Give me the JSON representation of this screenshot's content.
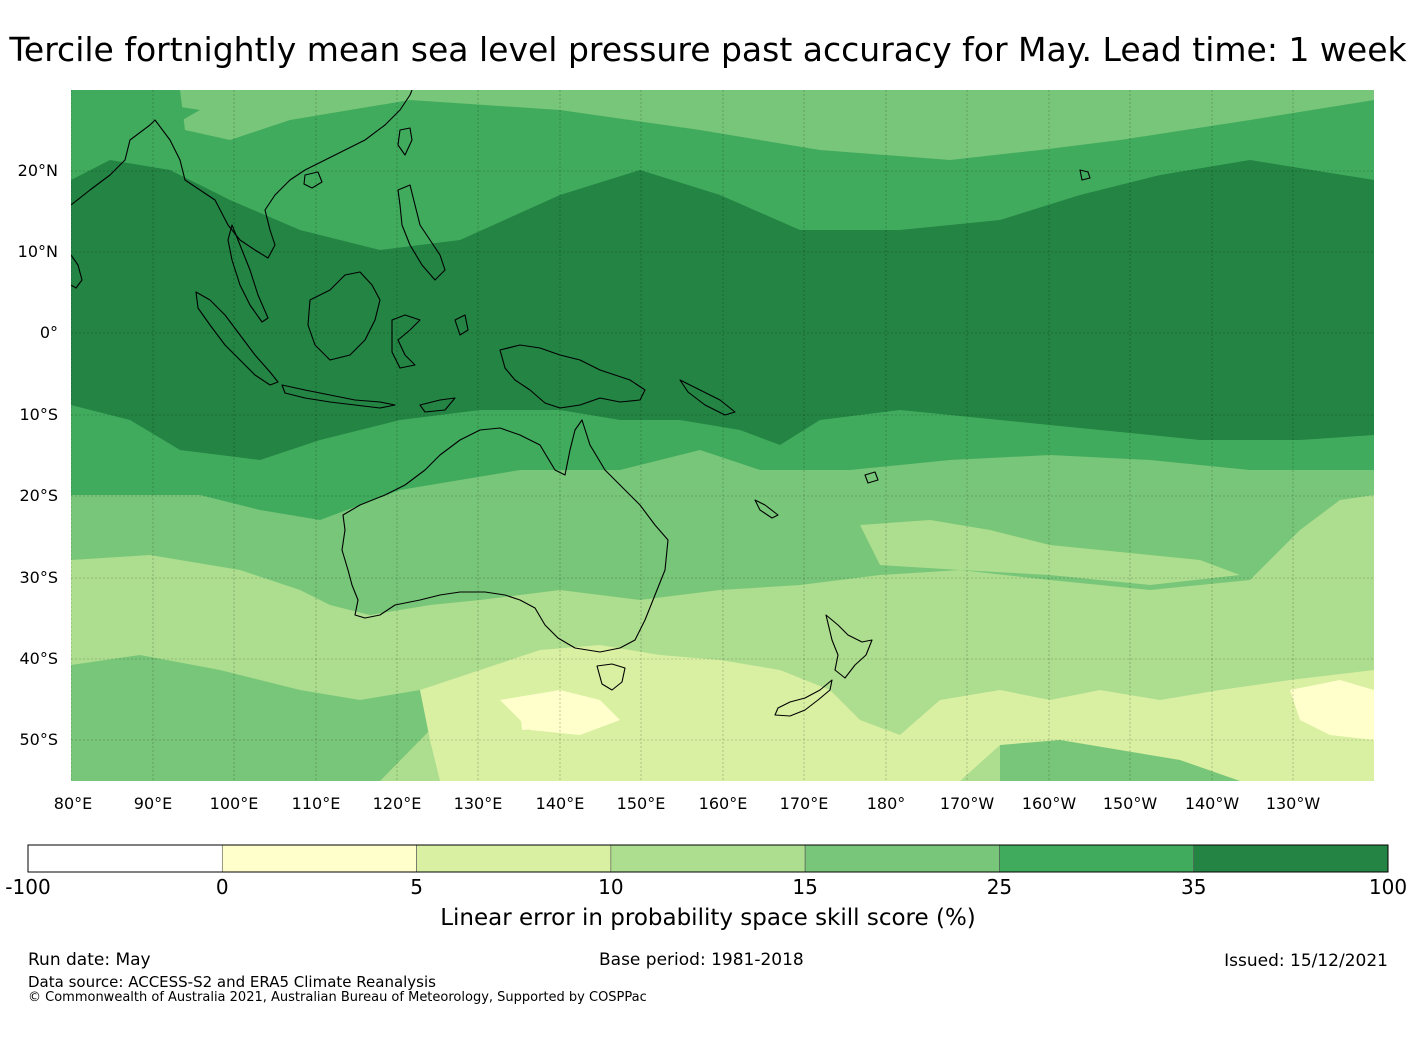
{
  "title": "Tercile fortnightly mean sea level pressure past accuracy for May. Lead time: 1 week",
  "map": {
    "lat_labels": [
      "20°N",
      "10°N",
      "0°",
      "10°S",
      "20°S",
      "30°S",
      "40°S",
      "50°S"
    ],
    "lon_labels": [
      "80°E",
      "90°E",
      "100°E",
      "110°E",
      "120°E",
      "130°E",
      "140°E",
      "150°E",
      "160°E",
      "170°E",
      "180°",
      "170°W",
      "160°W",
      "150°W",
      "140°W",
      "130°W"
    ],
    "extent": {
      "lon_min": 80,
      "lon_max": 240,
      "lat_min": -55,
      "lat_max": 30
    },
    "gridlines": true,
    "coastlines": true,
    "regions_description_by_category": {
      "35 to 100": "equatorial band ~13°S–10°N across the domain, Maritime Continent, central/eastern tropical Pacific",
      "25 to 35": "subtropical belts 10–20°N and 10–20°S, western North Pacific",
      "15 to 25": "northern edge 20–30°N, Australia, subtropical South Pacific",
      "10 to 15": "mid-latitudes 30–45°S, Indian Ocean south of 25°S",
      "5 to 10": "Southern Ocean south of Australia 40–55°S, east of New Zealand",
      "0 to 5": "isolated patches south of Australia and far south-east Pacific"
    }
  },
  "colorbar": {
    "bins": [
      {
        "from": -100,
        "to": 0,
        "color": "#ffffff"
      },
      {
        "from": 0,
        "to": 5,
        "color": "#ffffcc"
      },
      {
        "from": 5,
        "to": 10,
        "color": "#d9f0a3"
      },
      {
        "from": 10,
        "to": 15,
        "color": "#addd8e"
      },
      {
        "from": 15,
        "to": 25,
        "color": "#78c679"
      },
      {
        "from": 25,
        "to": 35,
        "color": "#41ab5d"
      },
      {
        "from": 35,
        "to": 100,
        "color": "#238443"
      }
    ],
    "ticks": [
      "-100",
      "0",
      "5",
      "10",
      "15",
      "25",
      "35",
      "100"
    ],
    "label": "Linear error in probability space skill score (%)"
  },
  "footer": {
    "run_date": "Run date: May",
    "base_period": "Base period: 1981-2018",
    "issued": "Issued: 15/12/2021",
    "data_source": "Data source: ACCESS-S2 and ERA5 Climate Reanalysis",
    "copyright": "© Commonwealth of Australia 2021, Australian Bureau of Meteorology, Supported by COSPPac"
  }
}
